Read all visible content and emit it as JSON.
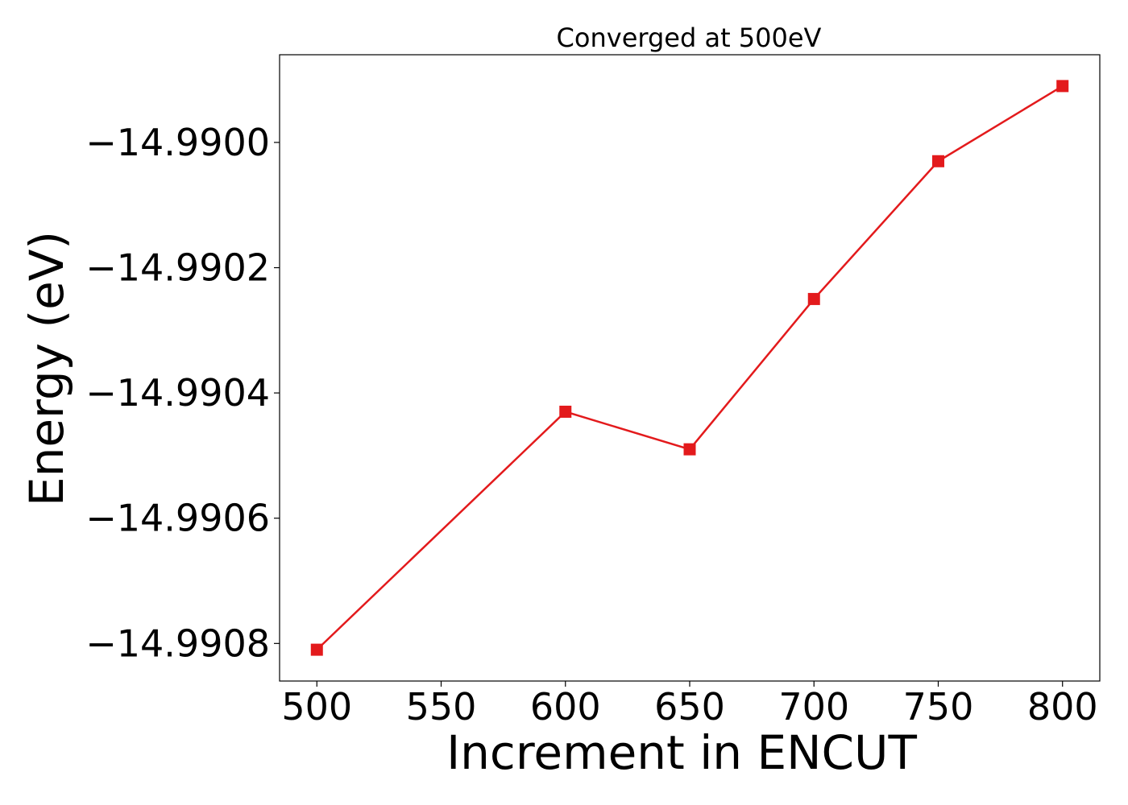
{
  "chart_data": {
    "type": "line",
    "title": "Converged at 500eV",
    "xlabel": "Increment in ENCUT",
    "ylabel": "Energy (eV)",
    "x": [
      500,
      600,
      650,
      700,
      750,
      800
    ],
    "series": [
      {
        "values": [
          -14.99081,
          -14.99043,
          -14.99049,
          -14.99025,
          -14.99003,
          -14.98991
        ],
        "color": "#e31a1c",
        "marker": "square"
      }
    ],
    "xlim": [
      485,
      815
    ],
    "ylim": [
      -14.99086,
      -14.98986
    ],
    "xticks": [
      500,
      550,
      600,
      650,
      700,
      750,
      800
    ],
    "xtick_labels": [
      "500",
      "550",
      "600",
      "650",
      "700",
      "750",
      "800"
    ],
    "yticks": [
      -14.9908,
      -14.9906,
      -14.9904,
      -14.9902,
      -14.99
    ],
    "ytick_labels": [
      "−14.9908",
      "−14.9906",
      "−14.9904",
      "−14.9902",
      "−14.9900"
    ],
    "grid": false,
    "legend": "none"
  }
}
